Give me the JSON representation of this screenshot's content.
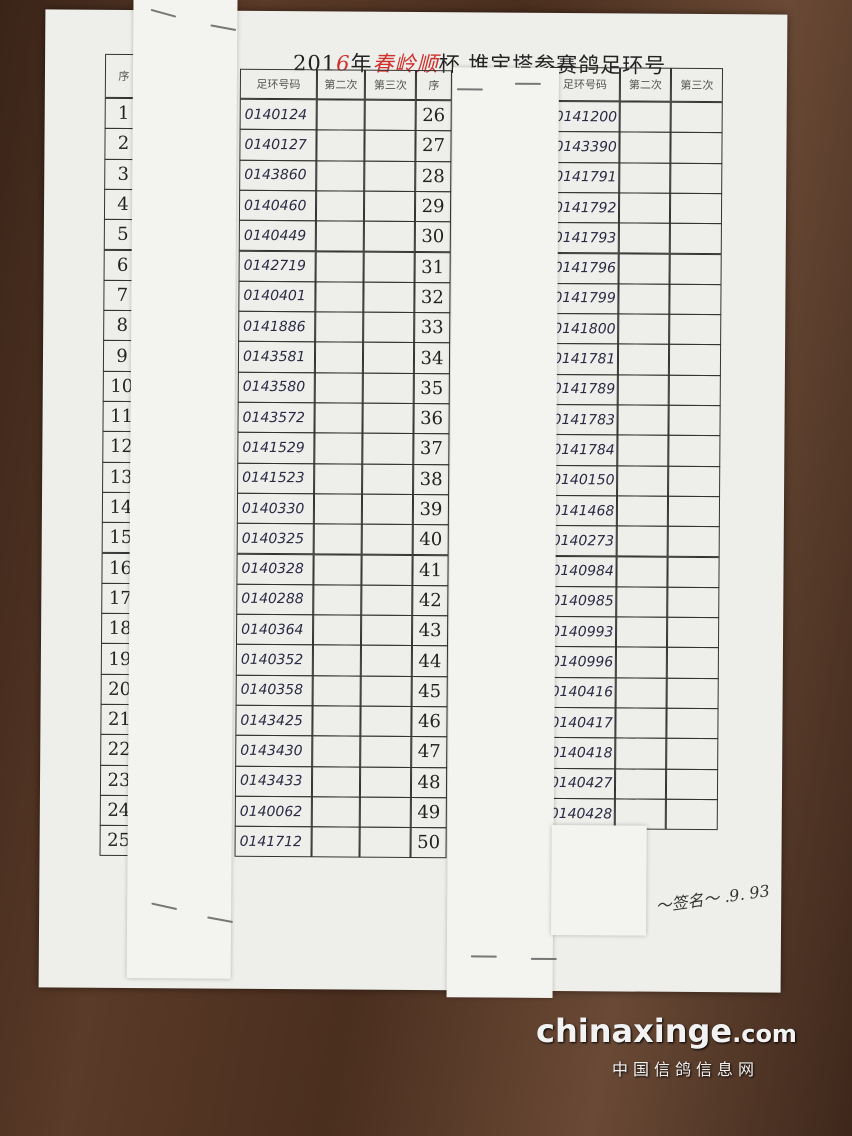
{
  "title": {
    "year_prefix": "201",
    "year_digit": "6",
    "year_suffix": "年",
    "handwritten_name": "春岭顺",
    "rest": "杯 堆宝塔参赛鸽足环号"
  },
  "headers": {
    "seq": "序",
    "ring": "足环号码",
    "second": "第二次",
    "third": "第三次"
  },
  "left_rows": [
    {
      "seq": "1",
      "ring": "0140124"
    },
    {
      "seq": "2",
      "ring": "0140127"
    },
    {
      "seq": "3",
      "ring": "0143860"
    },
    {
      "seq": "4",
      "ring": "0140460"
    },
    {
      "seq": "5",
      "ring": "0140449"
    },
    {
      "seq": "6",
      "ring": "0142719"
    },
    {
      "seq": "7",
      "ring": "0140401"
    },
    {
      "seq": "8",
      "ring": "0141886"
    },
    {
      "seq": "9",
      "ring": "0143581"
    },
    {
      "seq": "10",
      "ring": "0143580"
    },
    {
      "seq": "11",
      "ring": "0143572"
    },
    {
      "seq": "12",
      "ring": "0141529"
    },
    {
      "seq": "13",
      "ring": "0141523"
    },
    {
      "seq": "14",
      "ring": "0140330"
    },
    {
      "seq": "15",
      "ring": "0140325"
    },
    {
      "seq": "16",
      "ring": "0140328"
    },
    {
      "seq": "17",
      "ring": "0140288"
    },
    {
      "seq": "18",
      "ring": "0140364"
    },
    {
      "seq": "19",
      "ring": "0140352"
    },
    {
      "seq": "20",
      "ring": "0140358"
    },
    {
      "seq": "21",
      "ring": "0143425"
    },
    {
      "seq": "22",
      "ring": "0143430"
    },
    {
      "seq": "23",
      "ring": "0143433"
    },
    {
      "seq": "24",
      "ring": "0140062"
    },
    {
      "seq": "25",
      "ring": "0141712"
    }
  ],
  "right_rows": [
    {
      "seq": "26",
      "ring": "0141200"
    },
    {
      "seq": "27",
      "ring": "0143390"
    },
    {
      "seq": "28",
      "ring": "0141791"
    },
    {
      "seq": "29",
      "ring": "0141792"
    },
    {
      "seq": "30",
      "ring": "0141793"
    },
    {
      "seq": "31",
      "ring": "0141796"
    },
    {
      "seq": "32",
      "ring": "0141799"
    },
    {
      "seq": "33",
      "ring": "0141800"
    },
    {
      "seq": "34",
      "ring": "0141781"
    },
    {
      "seq": "35",
      "ring": "0141789"
    },
    {
      "seq": "36",
      "ring": "0141783"
    },
    {
      "seq": "37",
      "ring": "0141784"
    },
    {
      "seq": "38",
      "ring": "0140150"
    },
    {
      "seq": "39",
      "ring": "0141468"
    },
    {
      "seq": "40",
      "ring": "0140273"
    },
    {
      "seq": "41",
      "ring": "0140984"
    },
    {
      "seq": "42",
      "ring": "0140985"
    },
    {
      "seq": "43",
      "ring": "0140993"
    },
    {
      "seq": "44",
      "ring": "0140996"
    },
    {
      "seq": "45",
      "ring": "0140416"
    },
    {
      "seq": "46",
      "ring": "0140417"
    },
    {
      "seq": "47",
      "ring": "0140418"
    },
    {
      "seq": "48",
      "ring": "0140427"
    },
    {
      "seq": "49",
      "ring": "0140428"
    },
    {
      "seq": "50",
      "ring": ""
    }
  ],
  "watermark": {
    "brand": "chinaxinge",
    "tld": ".com",
    "subtitle": "中国信鸽信息网"
  }
}
